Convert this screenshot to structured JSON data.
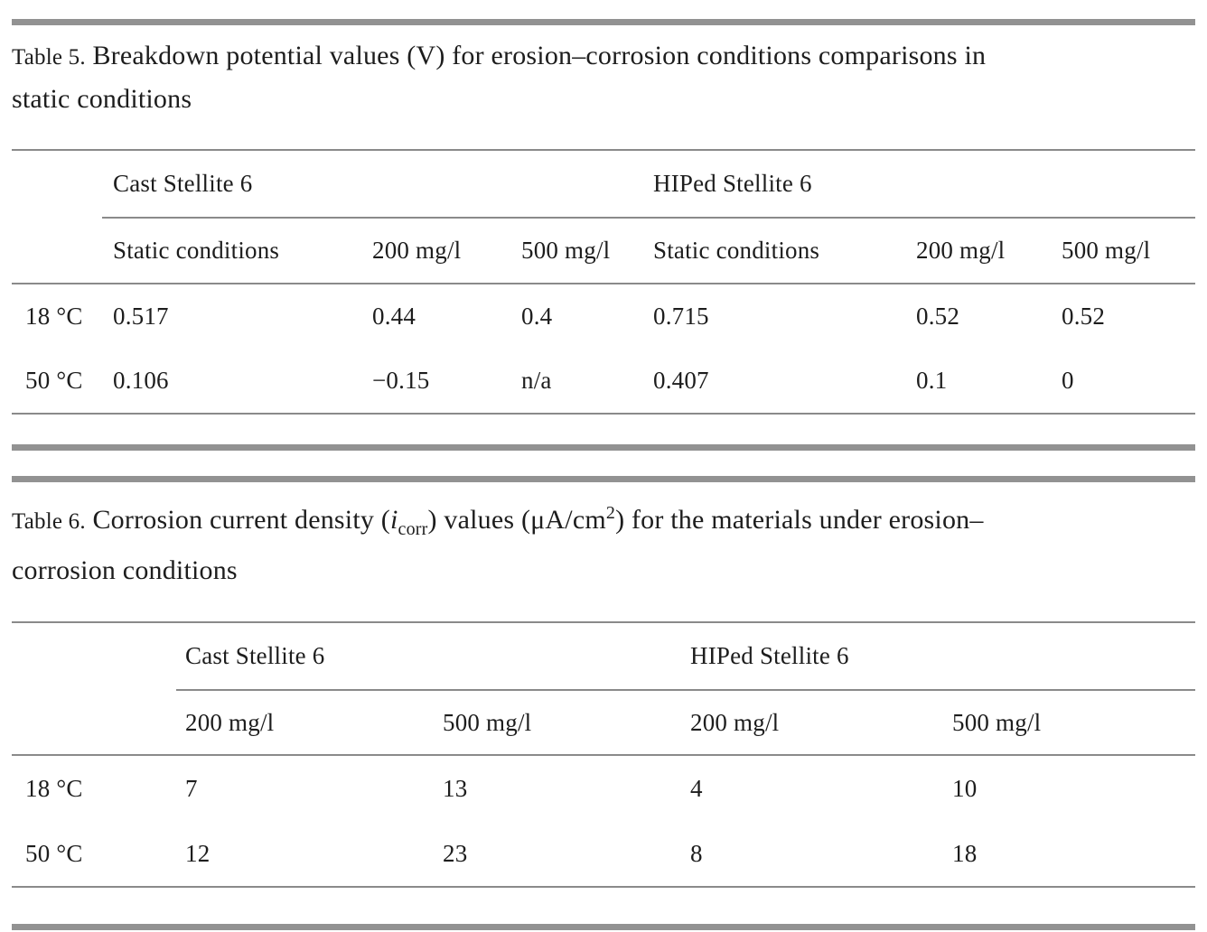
{
  "page": {
    "background": "#ffffff",
    "text_color": "#1d1d1d",
    "thin_rule_color": "#8a8a8a",
    "thick_bar_color": "#929292"
  },
  "table5": {
    "label": "Table 5.",
    "title_line1": "Breakdown potential values (V) for erosion–corrosion conditions comparisons in",
    "title_line2": "static conditions",
    "full_title": "Breakdown potential values (V) for erosion–corrosion conditions comparisons in static conditions",
    "groups": [
      "Cast Stellite 6",
      "HIPed Stellite 6"
    ],
    "col_headers": [
      "Static conditions",
      "200 mg/l",
      "500 mg/l",
      "Static conditions",
      "200 mg/l",
      "500 mg/l"
    ],
    "rows": [
      {
        "label": "18 °C",
        "values": [
          "0.517",
          "0.44",
          "0.4",
          "0.715",
          "0.52",
          "0.52"
        ]
      },
      {
        "label": "50 °C",
        "values": [
          "0.106",
          "−0.15",
          "n/a",
          "0.407",
          "0.1",
          "0"
        ]
      }
    ]
  },
  "table6": {
    "label": "Table 6.",
    "title_part1": "Corrosion current density (",
    "title_i": "i",
    "title_sub": "corr",
    "title_part2": ") values (μA/cm",
    "title_sup": "2",
    "title_part3": ") for the materials under erosion–",
    "title_line2": "corrosion conditions",
    "full_title": "Corrosion current density (i_corr) values (μA/cm²) for the materials under erosion–corrosion conditions",
    "groups": [
      "Cast Stellite 6",
      "HIPed Stellite 6"
    ],
    "col_headers": [
      "200 mg/l",
      "500 mg/l",
      "200 mg/l",
      "500 mg/l"
    ],
    "rows": [
      {
        "label": "18 °C",
        "values": [
          "7",
          "13",
          "4",
          "10"
        ]
      },
      {
        "label": "50 °C",
        "values": [
          "12",
          "23",
          "8",
          "18"
        ]
      }
    ]
  },
  "chart_data": [
    {
      "type": "table",
      "title": "Table 5. Breakdown potential values (V) for erosion–corrosion conditions comparisons in static conditions",
      "column_groups": [
        "Cast Stellite 6",
        "HIPed Stellite 6"
      ],
      "columns": [
        "Static conditions",
        "200 mg/l",
        "500 mg/l",
        "Static conditions",
        "200 mg/l",
        "500 mg/l"
      ],
      "row_labels": [
        "18 °C",
        "50 °C"
      ],
      "values": [
        [
          0.517,
          0.44,
          0.4,
          0.715,
          0.52,
          0.52
        ],
        [
          0.106,
          -0.15,
          null,
          0.407,
          0.1,
          0
        ]
      ],
      "notes": "null represents n/a"
    },
    {
      "type": "table",
      "title": "Table 6. Corrosion current density (i_corr) values (μA/cm²) for the materials under erosion–corrosion conditions",
      "column_groups": [
        "Cast Stellite 6",
        "HIPed Stellite 6"
      ],
      "columns": [
        "200 mg/l",
        "500 mg/l",
        "200 mg/l",
        "500 mg/l"
      ],
      "row_labels": [
        "18 °C",
        "50 °C"
      ],
      "values": [
        [
          7,
          13,
          4,
          10
        ],
        [
          12,
          23,
          8,
          18
        ]
      ]
    }
  ]
}
